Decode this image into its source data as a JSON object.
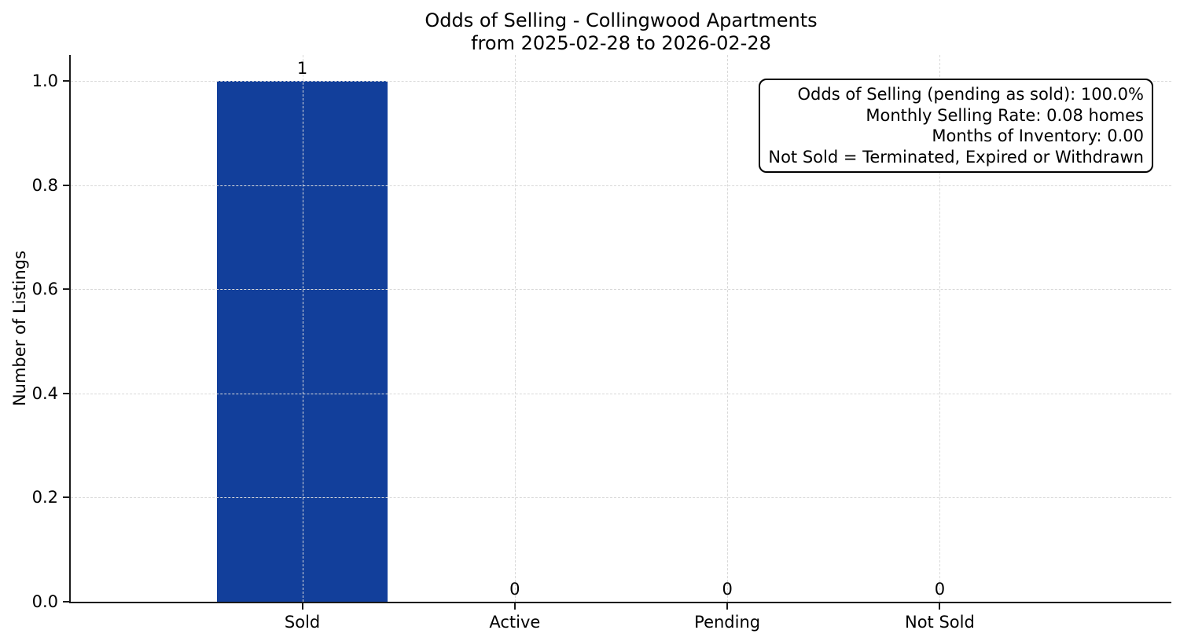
{
  "chart_data": {
    "type": "bar",
    "title": "Odds of Selling - Collingwood Apartments",
    "subtitle": "from 2025-02-28 to 2026-02-28",
    "categories": [
      "Sold",
      "Active",
      "Pending",
      "Not Sold"
    ],
    "values": [
      1,
      0,
      0,
      0
    ],
    "bar_labels": [
      "1",
      "0",
      "0",
      "0"
    ],
    "xlabel": "",
    "ylabel": "Number of Listings",
    "ylim": [
      0,
      1.05
    ],
    "yticks": [
      0.0,
      0.2,
      0.4,
      0.6,
      0.8,
      1.0
    ],
    "ytick_labels": [
      "0.0",
      "0.2",
      "0.4",
      "0.6",
      "0.8",
      "1.0"
    ],
    "grid": true,
    "grid_style": "dashed",
    "legend": "none",
    "bar_color": "#123f9b",
    "annotation_box": {
      "position": "top-right",
      "text_align": "right",
      "lines": [
        "Odds of Selling (pending as sold): 100.0%",
        "Monthly Selling Rate: 0.08 homes",
        "Months of Inventory: 0.00",
        "Not Sold = Terminated, Expired or Withdrawn"
      ]
    }
  }
}
